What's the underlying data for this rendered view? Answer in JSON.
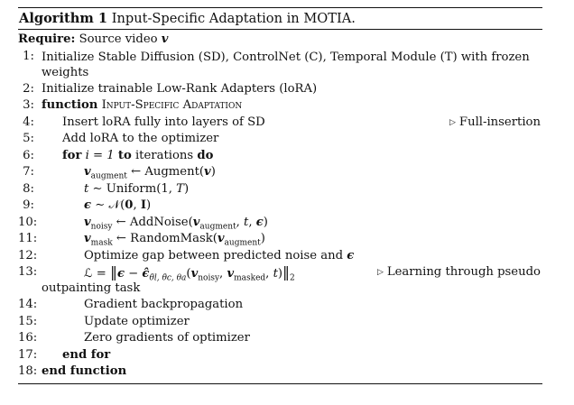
{
  "algorithm": {
    "label": "Algorithm 1",
    "title": "Input-Specific Adaptation in MOTIA."
  },
  "require": {
    "keyword": "Require:",
    "text": "Source video",
    "var": "v"
  },
  "lines": [
    {
      "num": "1:",
      "text": "Initialize Stable Diffusion (SD), ControlNet (C), Temporal Module (T) with frozen weights"
    },
    {
      "num": "2:",
      "text": "Initialize trainable Low-Rank Adapters (loRA)"
    },
    {
      "num": "3:",
      "keyword": "function",
      "name": "Input-Specific Adaptation"
    },
    {
      "num": "4:",
      "text": "Insert loRA fully into layers of SD",
      "comment": "Full-insertion"
    },
    {
      "num": "5:",
      "text": "Add loRA to the optimizer"
    },
    {
      "num": "6:",
      "kw_for": "for",
      "expr": "i = 1",
      "kw_to": "to",
      "rest": "iterations",
      "kw_do": "do"
    },
    {
      "num": "7:",
      "text": "v_augment ← Augment(v)"
    },
    {
      "num": "8:",
      "text": "t ∼ Uniform(1, T)"
    },
    {
      "num": "9:",
      "text": "ϵ ∼ 𝒩(0, I)"
    },
    {
      "num": "10:",
      "text": "v_noisy ← AddNoise(v_augment, t, ϵ)"
    },
    {
      "num": "11:",
      "text": "v_mask ← RandomMask(v_augment)"
    },
    {
      "num": "12:",
      "text": "Optimize gap between predicted noise and ϵ"
    },
    {
      "num": "13:",
      "text": "ℒ = ‖ϵ − ϵ̂(v_noisy, v_masked, t)‖₂",
      "comment": "Learning through pseudo",
      "continuation": "outpainting task"
    },
    {
      "num": "14:",
      "text": "Gradient backpropagation"
    },
    {
      "num": "15:",
      "text": "Update optimizer"
    },
    {
      "num": "16:",
      "text": "Zero gradients of optimizer"
    },
    {
      "num": "17:",
      "keyword": "end for"
    },
    {
      "num": "18:",
      "keyword": "end function"
    }
  ],
  "math": {
    "v": "v",
    "augment": "augment",
    "noisy": "noisy",
    "mask": "mask",
    "masked": "masked",
    "t": "t",
    "T": "T",
    "eps": "ϵ",
    "arrow": "←",
    "sim": "∼",
    "N": "𝒩",
    "zero": "0",
    "I": "I",
    "L": "ℒ",
    "theta_sub": "θ̄l, θ̄c, θa"
  }
}
